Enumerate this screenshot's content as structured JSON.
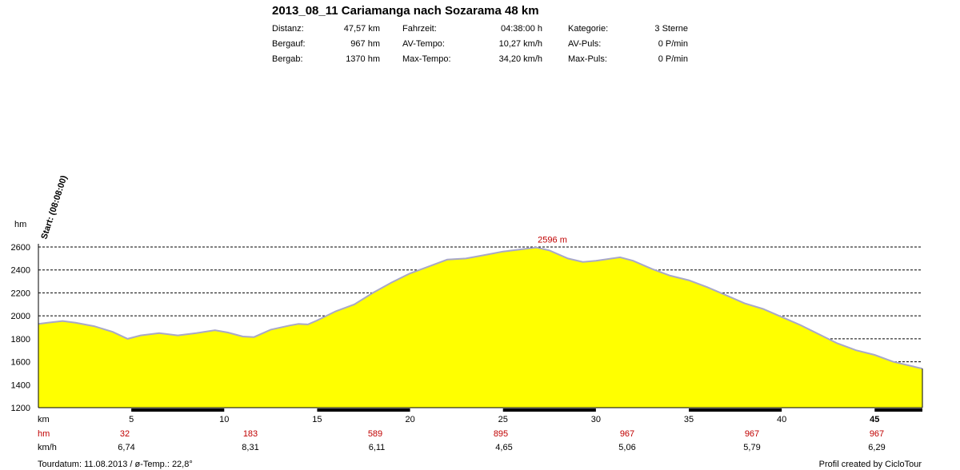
{
  "title": "2013_08_11 Cariamanga nach Sozarama 48 km",
  "stats": [
    {
      "label": "Distanz:",
      "value": "47,57 km"
    },
    {
      "label": "Bergauf:",
      "value": "967 hm"
    },
    {
      "label": "Bergab:",
      "value": "1370 hm"
    },
    {
      "label": "Fahrzeit:",
      "value": "04:38:00 h"
    },
    {
      "label": "AV-Tempo:",
      "value": "10,27 km/h"
    },
    {
      "label": "Max-Tempo:",
      "value": "34,20 km/h"
    },
    {
      "label": "Kategorie:",
      "value": "3 Sterne"
    },
    {
      "label": "AV-Puls:",
      "value": "0 P/min"
    },
    {
      "label": "Max-Puls:",
      "value": "0 P/min"
    }
  ],
  "footer_left": "Tourdatum: 11.08.2013  /  ø-Temp.: 22,8°",
  "footer_right": "Profil created by CicloTour",
  "colors": {
    "fill": "#ffff00",
    "outline": "#a8a8c8",
    "accent": "#c00000",
    "grid": "#000000"
  },
  "chart_data": {
    "type": "area",
    "ylabel": "hm",
    "xlabel": "km",
    "xlim": [
      0,
      47.57
    ],
    "ylim": [
      1200,
      2600
    ],
    "yticks": [
      1200,
      1400,
      1600,
      1800,
      2000,
      2200,
      2400,
      2600
    ],
    "xticks": [
      5,
      10,
      15,
      20,
      25,
      30,
      35,
      40,
      45
    ],
    "start_annotation": "Start: (08:08:00)",
    "peak": {
      "x": 26.8,
      "y": 2596,
      "label": "2596 m"
    },
    "series": [
      {
        "x": [
          0,
          0.5,
          1.3,
          2,
          3,
          4,
          4.8,
          5.5,
          6.5,
          7.5,
          8.5,
          9.5,
          10.2,
          11,
          11.6,
          12.5,
          13.5,
          14,
          14.5,
          15,
          16,
          17,
          18,
          19,
          20,
          21,
          22,
          23,
          24,
          25,
          26,
          26.8,
          27.5,
          28.5,
          29.3,
          30,
          31.3,
          32,
          33,
          34,
          35,
          36,
          37,
          38,
          39,
          40,
          41,
          42,
          43,
          44,
          45,
          46,
          47.57
        ],
        "y": [
          1930,
          1940,
          1955,
          1940,
          1910,
          1860,
          1800,
          1830,
          1850,
          1830,
          1850,
          1875,
          1855,
          1820,
          1815,
          1880,
          1915,
          1930,
          1925,
          1960,
          2040,
          2100,
          2200,
          2290,
          2370,
          2430,
          2490,
          2500,
          2530,
          2560,
          2580,
          2596,
          2570,
          2500,
          2470,
          2480,
          2510,
          2480,
          2410,
          2350,
          2310,
          2250,
          2180,
          2110,
          2060,
          1990,
          1920,
          1840,
          1760,
          1700,
          1660,
          1600,
          1540
        ]
      }
    ],
    "table": {
      "hm_label": "hm",
      "kmh_label": "km/h",
      "hm": [
        "32",
        "183",
        "589",
        "895",
        "967",
        "967",
        "967"
      ],
      "kmh": [
        "6,74",
        "8,31",
        "6,11",
        "4,65",
        "5,06",
        "5,79",
        "6,29"
      ]
    }
  }
}
